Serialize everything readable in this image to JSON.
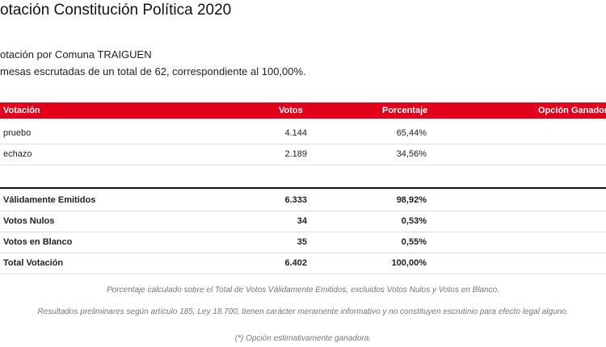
{
  "header": {
    "title": "otación Constitución Política 2020",
    "subtitle": [
      "otación por Comuna TRAIGUEN",
      "mesas escrutadas de un total de 62, correspondiente al 100,00%."
    ]
  },
  "table": {
    "header": [
      "Votación",
      "Votos",
      "Porcentaje",
      "Opción Ganadora"
    ],
    "rows": [
      [
        "pruebo",
        "4.144",
        "65,44%"
      ],
      [
        "echazo",
        "2.189",
        "34,56%"
      ]
    ]
  },
  "totals": {
    "rows": [
      [
        "Válidamente Emitidos",
        "6.333",
        "98,92%"
      ],
      [
        "Votos Nulos",
        "34",
        "0,53%"
      ],
      [
        "Votos en Blanco",
        "35",
        "0,55%"
      ],
      [
        "Total Votación",
        "6.402",
        "100,00%"
      ]
    ]
  },
  "notes": [
    "Porcentaje calculado sobre el Total de Votos Válidamente Emitidos, excluidos Votos Nulos y Votos en Blanco.",
    "Resultados preliminares según artículo 185, Ley 18.700, tienen carácter meramente informativo y no constituyen escrutinio para efecto legal alguno.",
    "(*) Opción estimativamente ganadora."
  ]
}
